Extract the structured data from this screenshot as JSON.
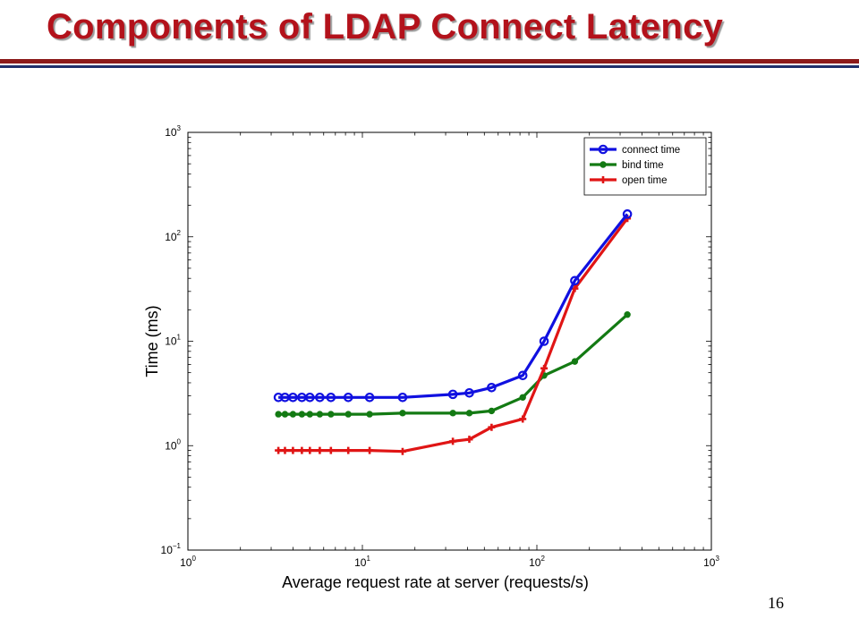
{
  "slide": {
    "title": "Components of LDAP Connect Latency",
    "page_number": "16"
  },
  "chart_data": {
    "type": "line",
    "title": "",
    "xlabel": "Average request rate at server (requests/s)",
    "ylabel": "Time (ms)",
    "xscale": "log",
    "yscale": "log",
    "xlim": [
      1,
      1000
    ],
    "ylim": [
      0.1,
      1000
    ],
    "x_ticks": [
      1,
      10,
      100,
      1000
    ],
    "y_ticks": [
      0.1,
      1,
      10,
      100,
      1000
    ],
    "tick_labels": {
      "x": [
        {
          "base": "10",
          "exp": "0"
        },
        {
          "base": "10",
          "exp": "1"
        },
        {
          "base": "10",
          "exp": "2"
        },
        {
          "base": "10",
          "exp": "3"
        }
      ],
      "y": [
        {
          "base": "10",
          "exp": "−1"
        },
        {
          "base": "10",
          "exp": "0"
        },
        {
          "base": "10",
          "exp": "1"
        },
        {
          "base": "10",
          "exp": "2"
        },
        {
          "base": "10",
          "exp": "3"
        }
      ]
    },
    "grid": false,
    "legend_position": "top-right",
    "series": [
      {
        "name": "connect time",
        "color": "#1010e0",
        "marker": "circle",
        "points": [
          [
            3.3,
            2.9
          ],
          [
            3.6,
            2.9
          ],
          [
            4.0,
            2.9
          ],
          [
            4.5,
            2.9
          ],
          [
            5.0,
            2.9
          ],
          [
            5.7,
            2.9
          ],
          [
            6.6,
            2.9
          ],
          [
            8.3,
            2.9
          ],
          [
            11,
            2.9
          ],
          [
            17,
            2.9
          ],
          [
            33,
            3.1
          ],
          [
            41,
            3.2
          ],
          [
            55,
            3.6
          ],
          [
            83,
            4.7
          ],
          [
            110,
            10
          ],
          [
            165,
            38
          ],
          [
            330,
            165
          ]
        ]
      },
      {
        "name": "bind time",
        "color": "#137a13",
        "marker": "dot",
        "points": [
          [
            3.3,
            2.0
          ],
          [
            3.6,
            2.0
          ],
          [
            4.0,
            2.0
          ],
          [
            4.5,
            2.0
          ],
          [
            5.0,
            2.0
          ],
          [
            5.7,
            2.0
          ],
          [
            6.6,
            2.0
          ],
          [
            8.3,
            2.0
          ],
          [
            11,
            2.0
          ],
          [
            17,
            2.05
          ],
          [
            33,
            2.05
          ],
          [
            41,
            2.05
          ],
          [
            55,
            2.15
          ],
          [
            83,
            2.9
          ],
          [
            110,
            4.7
          ],
          [
            165,
            6.4
          ],
          [
            330,
            18
          ]
        ]
      },
      {
        "name": "open time",
        "color": "#e01515",
        "marker": "plus",
        "points": [
          [
            3.3,
            0.9
          ],
          [
            3.6,
            0.9
          ],
          [
            4.0,
            0.9
          ],
          [
            4.5,
            0.9
          ],
          [
            5.0,
            0.9
          ],
          [
            5.7,
            0.9
          ],
          [
            6.6,
            0.9
          ],
          [
            8.3,
            0.9
          ],
          [
            11,
            0.9
          ],
          [
            17,
            0.88
          ],
          [
            33,
            1.1
          ],
          [
            41,
            1.15
          ],
          [
            55,
            1.5
          ],
          [
            83,
            1.8
          ],
          [
            110,
            5.5
          ],
          [
            165,
            32
          ],
          [
            330,
            150
          ]
        ]
      }
    ]
  }
}
